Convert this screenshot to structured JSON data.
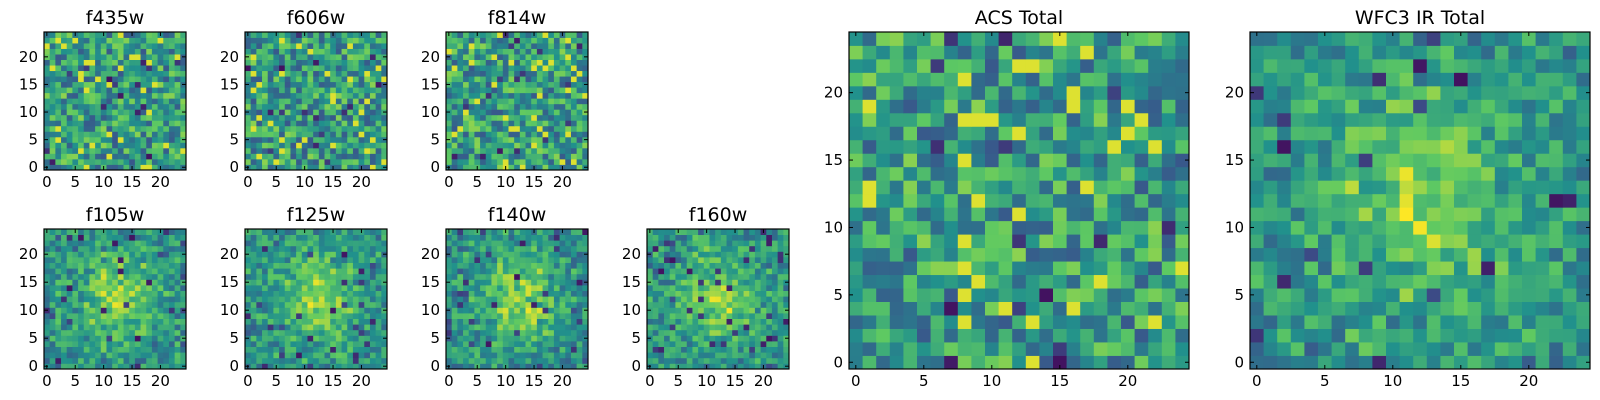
{
  "figure": {
    "colormap": "viridis",
    "colormap_stops": [
      "#440154",
      "#3b528b",
      "#21918c",
      "#5ec962",
      "#fde725"
    ]
  },
  "chart_data": [
    {
      "id": "f435w",
      "type": "heatmap",
      "title": "f435w",
      "grid_size": 25,
      "xlim": [
        0,
        25
      ],
      "ylim": [
        0,
        25
      ],
      "xticks": [
        0,
        5,
        10,
        15,
        20
      ],
      "yticks": [
        0,
        5,
        10,
        15,
        20
      ],
      "seed": 11,
      "pattern": "noise"
    },
    {
      "id": "f606w",
      "type": "heatmap",
      "title": "f606w",
      "grid_size": 25,
      "xlim": [
        0,
        25
      ],
      "ylim": [
        0,
        25
      ],
      "xticks": [
        0,
        5,
        10,
        15,
        20
      ],
      "yticks": [
        0,
        5,
        10,
        15,
        20
      ],
      "seed": 23,
      "pattern": "noise"
    },
    {
      "id": "f814w",
      "type": "heatmap",
      "title": "f814w",
      "grid_size": 25,
      "xlim": [
        0,
        25
      ],
      "ylim": [
        0,
        25
      ],
      "xticks": [
        0,
        5,
        10,
        15,
        20
      ],
      "yticks": [
        0,
        5,
        10,
        15,
        20
      ],
      "seed": 37,
      "pattern": "noise"
    },
    {
      "id": "f105w",
      "type": "heatmap",
      "title": "f105w",
      "grid_size": 25,
      "xlim": [
        0,
        25
      ],
      "ylim": [
        0,
        25
      ],
      "xticks": [
        0,
        5,
        10,
        15,
        20
      ],
      "yticks": [
        0,
        5,
        10,
        15,
        20
      ],
      "seed": 41,
      "pattern": "blob"
    },
    {
      "id": "f125w",
      "type": "heatmap",
      "title": "f125w",
      "grid_size": 25,
      "xlim": [
        0,
        25
      ],
      "ylim": [
        0,
        25
      ],
      "xticks": [
        0,
        5,
        10,
        15,
        20
      ],
      "yticks": [
        0,
        5,
        10,
        15,
        20
      ],
      "seed": 53,
      "pattern": "blob"
    },
    {
      "id": "f140w",
      "type": "heatmap",
      "title": "f140w",
      "grid_size": 25,
      "xlim": [
        0,
        25
      ],
      "ylim": [
        0,
        25
      ],
      "xticks": [
        0,
        5,
        10,
        15,
        20
      ],
      "yticks": [
        0,
        5,
        10,
        15,
        20
      ],
      "seed": 67,
      "pattern": "blob"
    },
    {
      "id": "f160w",
      "type": "heatmap",
      "title": "f160w",
      "grid_size": 25,
      "xlim": [
        0,
        25
      ],
      "ylim": [
        0,
        25
      ],
      "xticks": [
        0,
        5,
        10,
        15,
        20
      ],
      "yticks": [
        0,
        5,
        10,
        15,
        20
      ],
      "seed": 71,
      "pattern": "blob"
    },
    {
      "id": "acs_total",
      "type": "heatmap",
      "title": "ACS Total",
      "grid_size": 25,
      "xlim": [
        0,
        25
      ],
      "ylim": [
        0,
        25
      ],
      "xticks": [
        0,
        5,
        10,
        15,
        20
      ],
      "yticks": [
        0,
        5,
        10,
        15,
        20
      ],
      "seed": 83,
      "pattern": "noise"
    },
    {
      "id": "wfc3_ir_total",
      "type": "heatmap",
      "title": "WFC3 IR Total",
      "grid_size": 25,
      "xlim": [
        0,
        25
      ],
      "ylim": [
        0,
        25
      ],
      "xticks": [
        0,
        5,
        10,
        15,
        20
      ],
      "yticks": [
        0,
        5,
        10,
        15,
        20
      ],
      "seed": 97,
      "pattern": "blob"
    }
  ]
}
